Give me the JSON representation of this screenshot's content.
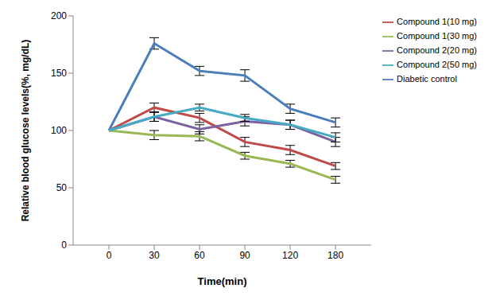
{
  "chart_data": {
    "type": "line",
    "x_label": "Time(min)",
    "y_label": "Relative blood glucose levels(%, mg/dL)",
    "categories": [
      0,
      30,
      60,
      90,
      120,
      180
    ],
    "ylim": [
      0,
      200
    ],
    "yticks": [
      0,
      50,
      100,
      150,
      200
    ],
    "grid": false,
    "legend": "upper right",
    "series": [
      {
        "name": "Diabetic control",
        "color": "#4a7ebb",
        "values": [
          100,
          176,
          152,
          148,
          119,
          107
        ],
        "errors": [
          0,
          5,
          4,
          5,
          4,
          4
        ]
      },
      {
        "name": "Compound 1(10 mg)",
        "color": "#be4b48",
        "values": [
          100,
          120,
          111,
          90,
          83,
          69
        ],
        "errors": [
          0,
          4,
          4,
          4,
          4,
          3
        ]
      },
      {
        "name": "Compound 1(30 mg)",
        "color": "#98b954",
        "values": [
          100,
          96,
          95,
          78,
          71,
          57
        ],
        "errors": [
          0,
          4,
          4,
          3,
          3,
          3
        ]
      },
      {
        "name": "Compound 2(20 mg)",
        "color": "#7d60a0",
        "values": [
          100,
          112,
          101,
          108,
          105,
          90
        ],
        "errors": [
          0,
          4,
          4,
          4,
          4,
          4
        ]
      },
      {
        "name": "Compound 2(50 mg)",
        "color": "#46aac5",
        "values": [
          100,
          112,
          120,
          111,
          105,
          94
        ],
        "errors": [
          0,
          4,
          3,
          3,
          4,
          4
        ]
      }
    ]
  }
}
